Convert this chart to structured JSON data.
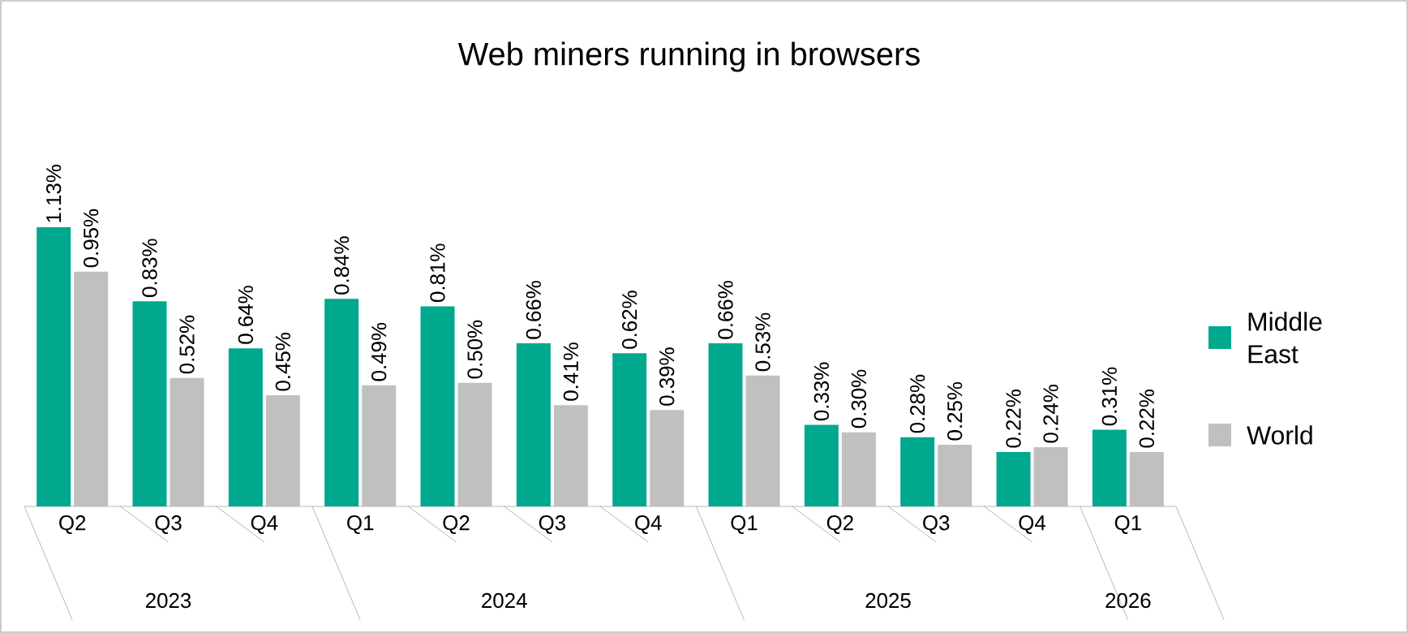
{
  "chart_data": {
    "type": "bar",
    "title": "Web miners running in browsers",
    "categories": [
      "Q2",
      "Q3",
      "Q4",
      "Q1",
      "Q2",
      "Q3",
      "Q4",
      "Q1",
      "Q2",
      "Q3",
      "Q4",
      "Q1"
    ],
    "series": [
      {
        "name": "Middle East",
        "color": "#00a88e",
        "values": [
          1.13,
          0.83,
          0.64,
          0.84,
          0.81,
          0.66,
          0.62,
          0.66,
          0.33,
          0.28,
          0.22,
          0.31
        ],
        "value_labels": [
          "1.13%",
          "0.83%",
          "0.64%",
          "0.84%",
          "0.81%",
          "0.66%",
          "0.62%",
          "0.66%",
          "0.33%",
          "0.28%",
          "0.22%",
          "0.31%"
        ]
      },
      {
        "name": "World",
        "color": "#c0c0c0",
        "values": [
          0.95,
          0.52,
          0.45,
          0.49,
          0.5,
          0.41,
          0.39,
          0.53,
          0.3,
          0.25,
          0.24,
          0.22
        ],
        "value_labels": [
          "0.95%",
          "0.52%",
          "0.45%",
          "0.49%",
          "0.50%",
          "0.41%",
          "0.39%",
          "0.53%",
          "0.30%",
          "0.25%",
          "0.24%",
          "0.22%"
        ]
      }
    ],
    "annotations": [
      "2023",
      "2024",
      "2025",
      "2026"
    ],
    "legend": "right"
  }
}
